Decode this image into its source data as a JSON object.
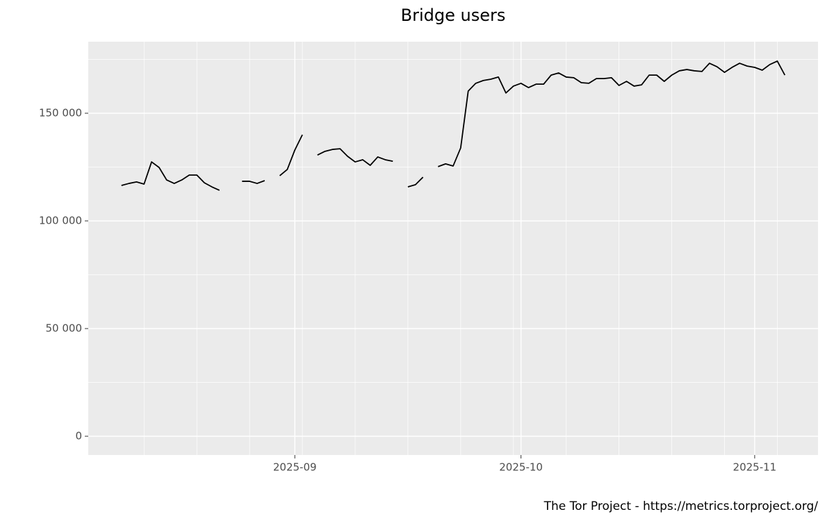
{
  "chart_data": {
    "type": "line",
    "title": "Bridge users",
    "caption": "The Tor Project - https://metrics.torproject.org/",
    "color": "#000000",
    "grid": true,
    "categories": [
      null,
      null,
      null,
      null,
      null,
      null,
      null,
      null,
      null,
      null,
      null,
      null,
      null,
      null,
      null,
      null,
      null,
      null,
      null,
      null,
      null,
      null,
      null,
      "2025-09",
      null,
      null,
      null,
      null,
      null,
      null,
      null,
      null,
      null,
      null,
      null,
      null,
      null,
      null,
      null,
      null,
      null,
      null,
      null,
      null,
      null,
      null,
      null,
      null,
      null,
      null,
      null,
      null,
      null,
      "2025-10",
      null,
      null,
      null,
      null,
      null,
      null,
      null,
      null,
      null,
      null,
      null,
      null,
      null,
      null,
      null,
      null,
      null,
      null,
      null,
      null,
      null,
      null,
      null,
      null,
      null,
      null,
      null,
      null,
      null,
      null,
      "2025-11",
      null,
      null,
      null,
      null
    ],
    "values": [
      116450,
      117400,
      118100,
      117100,
      127400,
      124800,
      119000,
      117400,
      119000,
      121300,
      121300,
      117700,
      115800,
      114200,
      null,
      null,
      118400,
      118400,
      117400,
      118700,
      null,
      121000,
      123900,
      132900,
      140000,
      null,
      130600,
      132300,
      133200,
      133500,
      130000,
      127400,
      128400,
      125800,
      129700,
      128400,
      127700,
      null,
      115800,
      116800,
      120300,
      null,
      125200,
      126500,
      125500,
      133900,
      160300,
      163900,
      165200,
      165800,
      166800,
      159400,
      162600,
      163900,
      161900,
      163500,
      163500,
      167700,
      168700,
      166800,
      166500,
      164200,
      163900,
      166100,
      166100,
      166500,
      162900,
      164800,
      162600,
      163200,
      167700,
      167700,
      164800,
      167700,
      169700,
      170300,
      169700,
      169400,
      173200,
      171600,
      169000,
      171300,
      173200,
      171900,
      171300,
      170000,
      172600,
      174200,
      167700
    ],
    "ylim": [
      -8710,
      183226
    ],
    "yticks": [
      0,
      {
        "value": 50000,
        "label": "50 000"
      },
      {
        "value": 100000,
        "label": "100 000"
      },
      {
        "value": 150000,
        "label": "150 000"
      }
    ]
  }
}
